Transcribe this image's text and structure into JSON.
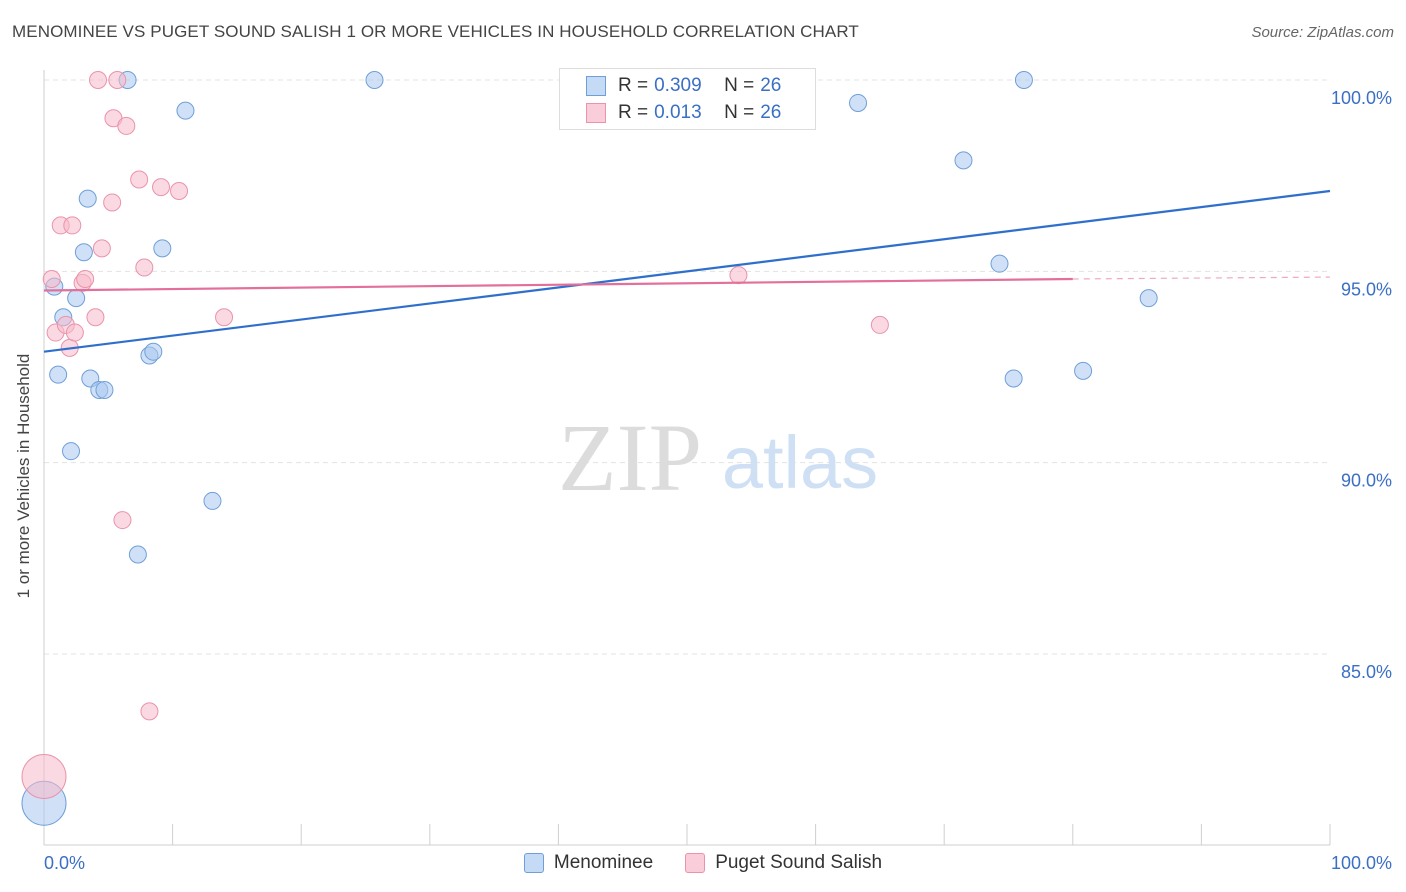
{
  "title": "MENOMINEE VS PUGET SOUND SALISH 1 OR MORE VEHICLES IN HOUSEHOLD CORRELATION CHART",
  "source": "Source: ZipAtlas.com",
  "watermark": {
    "zip": "ZIP",
    "atlas": "atlas"
  },
  "legend_inset": {
    "rows": [
      {
        "r_label": "R =",
        "r_value": "0.309",
        "n_label": "N =",
        "n_value": "26",
        "color": "#a9c8f0"
      },
      {
        "r_label": "R =",
        "r_value": "0.013",
        "n_label": "N =",
        "n_value": "26",
        "color": "#f7b9cb"
      }
    ]
  },
  "chart_data": {
    "type": "scatter",
    "title": "MENOMINEE VS PUGET SOUND SALISH 1 OR MORE VEHICLES IN HOUSEHOLD CORRELATION CHART",
    "xlabel": "",
    "ylabel": "1 or more Vehicles in Household",
    "xlim": [
      0,
      100
    ],
    "ylim": [
      80.6,
      100.8
    ],
    "x_tick_labels": [
      {
        "value": 0,
        "label": "0.0%"
      },
      {
        "value": 100,
        "label": "100.0%"
      }
    ],
    "y_tick_labels": [
      {
        "value": 100,
        "label": "100.0%"
      },
      {
        "value": 95,
        "label": "95.0%"
      },
      {
        "value": 90,
        "label": "90.0%"
      },
      {
        "value": 85,
        "label": "85.0%"
      }
    ],
    "grid": true,
    "legend_position": "bottom",
    "series": [
      {
        "name": "Menominee",
        "color": "#a9c8f0",
        "stroke": "#6f9fd8",
        "trend_color": "#2e6fcb",
        "trend": {
          "x0": 0,
          "y0": 92.9,
          "x1": 100,
          "y1": 97.1
        },
        "points": [
          {
            "x": 0.0,
            "y": 81.1,
            "big": true
          },
          {
            "x": 0.8,
            "y": 94.6
          },
          {
            "x": 1.1,
            "y": 92.3
          },
          {
            "x": 1.5,
            "y": 93.8
          },
          {
            "x": 2.1,
            "y": 90.3
          },
          {
            "x": 2.5,
            "y": 94.3
          },
          {
            "x": 3.1,
            "y": 95.5
          },
          {
            "x": 3.4,
            "y": 96.9
          },
          {
            "x": 3.6,
            "y": 92.2
          },
          {
            "x": 4.3,
            "y": 91.9
          },
          {
            "x": 4.7,
            "y": 91.9
          },
          {
            "x": 6.5,
            "y": 100.0
          },
          {
            "x": 7.3,
            "y": 87.6
          },
          {
            "x": 8.2,
            "y": 92.8
          },
          {
            "x": 8.5,
            "y": 92.9
          },
          {
            "x": 9.2,
            "y": 95.6
          },
          {
            "x": 11.0,
            "y": 99.2
          },
          {
            "x": 13.1,
            "y": 89.0
          },
          {
            "x": 25.7,
            "y": 100.0
          },
          {
            "x": 63.3,
            "y": 99.4
          },
          {
            "x": 71.5,
            "y": 97.9
          },
          {
            "x": 74.3,
            "y": 95.2
          },
          {
            "x": 75.4,
            "y": 92.2
          },
          {
            "x": 76.2,
            "y": 100.0
          },
          {
            "x": 80.8,
            "y": 92.4
          },
          {
            "x": 85.9,
            "y": 94.3
          }
        ]
      },
      {
        "name": "Puget Sound Salish",
        "color": "#f7b9cb",
        "stroke": "#ea93ab",
        "trend_color": "#e3709a",
        "trend": {
          "x0": 0,
          "y0": 94.5,
          "x1": 80,
          "y1": 94.8
        },
        "trend_dash": {
          "x0": 80,
          "y0": 94.8,
          "x1": 100,
          "y1": 94.85
        },
        "points": [
          {
            "x": 0.0,
            "y": 81.8,
            "big": true
          },
          {
            "x": 0.6,
            "y": 94.8
          },
          {
            "x": 0.9,
            "y": 93.4
          },
          {
            "x": 1.3,
            "y": 96.2
          },
          {
            "x": 1.7,
            "y": 93.6
          },
          {
            "x": 2.0,
            "y": 93.0
          },
          {
            "x": 2.2,
            "y": 96.2
          },
          {
            "x": 2.4,
            "y": 93.4
          },
          {
            "x": 3.0,
            "y": 94.7
          },
          {
            "x": 3.2,
            "y": 94.8
          },
          {
            "x": 4.0,
            "y": 93.8
          },
          {
            "x": 4.5,
            "y": 95.6
          },
          {
            "x": 4.2,
            "y": 100.0
          },
          {
            "x": 5.3,
            "y": 96.8
          },
          {
            "x": 5.4,
            "y": 99.0
          },
          {
            "x": 5.7,
            "y": 100.0
          },
          {
            "x": 6.1,
            "y": 88.5
          },
          {
            "x": 6.4,
            "y": 98.8
          },
          {
            "x": 7.4,
            "y": 97.4
          },
          {
            "x": 7.8,
            "y": 95.1
          },
          {
            "x": 8.2,
            "y": 83.5
          },
          {
            "x": 9.1,
            "y": 97.2
          },
          {
            "x": 10.5,
            "y": 97.1
          },
          {
            "x": 14.0,
            "y": 93.8
          },
          {
            "x": 54.0,
            "y": 94.9
          },
          {
            "x": 65.0,
            "y": 93.6
          }
        ]
      }
    ]
  }
}
